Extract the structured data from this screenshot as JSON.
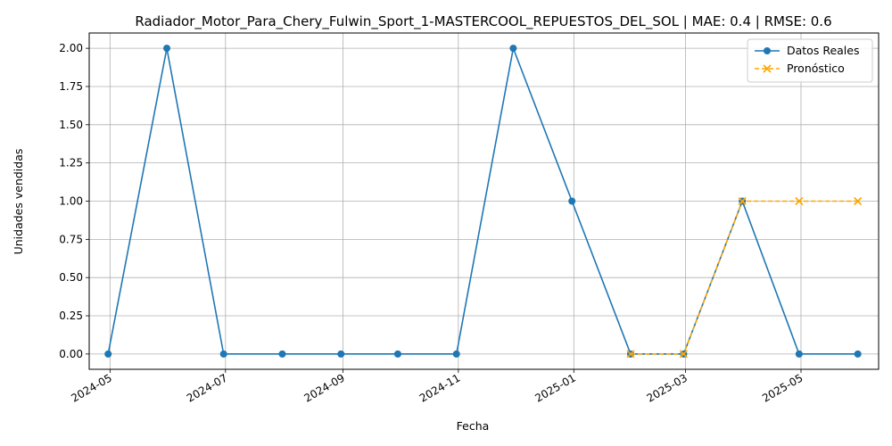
{
  "chart_data": {
    "type": "line",
    "title": "Radiador_Motor_Para_Chery_Fulwin_Sport_1-MASTERCOOL_REPUESTOS_DEL_SOL | MAE: 0.4 | RMSE: 0.6",
    "xlabel": "Fecha",
    "ylabel": "Unidades vendidas",
    "ylim": [
      -0.1,
      2.1
    ],
    "yticks": [
      "0.00",
      "0.25",
      "0.50",
      "0.75",
      "1.00",
      "1.25",
      "1.50",
      "1.75",
      "2.00"
    ],
    "xticks": [
      "2024-05",
      "2024-07",
      "2024-09",
      "2024-11",
      "2025-01",
      "2025-03",
      "2025-05"
    ],
    "xlim": [
      "2024-04-20",
      "2025-06-11"
    ],
    "grid": true,
    "legend_position": "top-right",
    "series": [
      {
        "name": "Datos Reales",
        "color": "#1f77b4",
        "style": "solid",
        "marker": "circle",
        "x": [
          "2024-04-30",
          "2024-05-31",
          "2024-06-30",
          "2024-07-31",
          "2024-08-31",
          "2024-09-30",
          "2024-10-31",
          "2024-11-30",
          "2024-12-31",
          "2025-01-31",
          "2025-02-28",
          "2025-03-31",
          "2025-04-30",
          "2025-05-31"
        ],
        "values": [
          0,
          2,
          0,
          0,
          0,
          0,
          0,
          2,
          1,
          0,
          0,
          1,
          0,
          0
        ]
      },
      {
        "name": "Pronóstico",
        "color": "#ffa500",
        "style": "dashed",
        "marker": "x",
        "x": [
          "2025-01-31",
          "2025-02-28",
          "2025-03-31",
          "2025-04-30",
          "2025-05-31"
        ],
        "values": [
          0,
          0,
          1,
          1,
          1
        ]
      }
    ]
  }
}
